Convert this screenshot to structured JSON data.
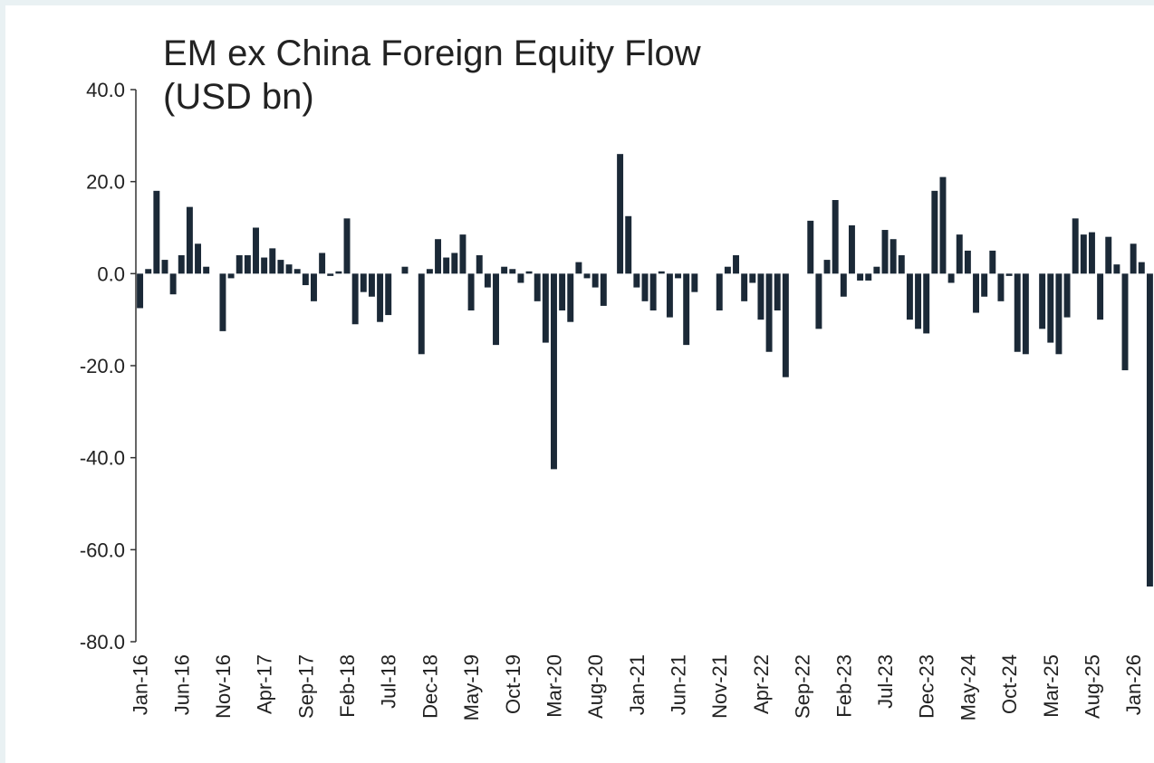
{
  "chart_data": {
    "type": "bar",
    "title": "EM ex China Foreign Equity Flow",
    "subtitle": "(USD bn)",
    "color": "#1b2937",
    "ylim": [
      -80,
      40
    ],
    "yticks": [
      {
        "value": -80,
        "label": "-80.0"
      },
      {
        "value": -60,
        "label": "-60.0"
      },
      {
        "value": -40,
        "label": "-40.0"
      },
      {
        "value": -20,
        "label": "-20.0"
      },
      {
        "value": 0,
        "label": "0.0"
      },
      {
        "value": 20,
        "label": "20.0"
      },
      {
        "value": 40,
        "label": "40.0"
      }
    ],
    "categories": [
      "Jan-16",
      null,
      null,
      null,
      null,
      "Jun-16",
      null,
      null,
      null,
      null,
      "Nov-16",
      null,
      null,
      null,
      null,
      "Apr-17",
      null,
      null,
      null,
      null,
      "Sep-17",
      null,
      null,
      null,
      null,
      "Feb-18",
      null,
      null,
      null,
      null,
      "Jul-18",
      null,
      null,
      null,
      null,
      "Dec-18",
      null,
      null,
      null,
      null,
      "May-19",
      null,
      null,
      null,
      null,
      "Oct-19",
      null,
      null,
      null,
      null,
      "Mar-20",
      null,
      null,
      null,
      null,
      "Aug-20",
      null,
      null,
      null,
      null,
      "Jan-21",
      null,
      null,
      null,
      null,
      "Jun-21",
      null,
      null,
      null,
      null,
      "Nov-21",
      null,
      null,
      null,
      null,
      "Apr-22",
      null,
      null,
      null,
      null,
      "Sep-22",
      null,
      null,
      null,
      null,
      "Feb-23",
      null,
      null,
      null,
      null,
      "Jul-23",
      null,
      null,
      null,
      null,
      "Dec-23",
      null,
      null,
      null,
      null,
      "May-24",
      null,
      null,
      null,
      null,
      "Oct-24",
      null,
      null,
      null,
      null,
      "Mar-25",
      null,
      null,
      null,
      null,
      "Aug-25",
      null,
      null,
      null,
      null,
      "Jan-26",
      null,
      null
    ],
    "values": [
      -7.5,
      1,
      18,
      3,
      -4.5,
      4,
      14.5,
      6.5,
      1.5,
      0,
      -12.5,
      -1,
      4,
      4,
      10,
      3.5,
      5.5,
      3,
      2,
      1,
      -2.5,
      -6,
      4.5,
      -0.5,
      0.5,
      12,
      -11,
      -4,
      -5,
      -10.5,
      -9,
      0,
      1.5,
      0,
      -17.5,
      1,
      7.5,
      3.5,
      4.5,
      8.5,
      -8,
      4,
      -3,
      -15.5,
      1.5,
      1,
      -2,
      0.5,
      -6,
      -15,
      -42.5,
      -8,
      -10.5,
      2.5,
      -1,
      -3,
      -7,
      0,
      26,
      12.5,
      -3,
      -6,
      -8,
      0.5,
      -9.5,
      -1,
      -15.5,
      -4,
      0,
      0,
      -8,
      1.5,
      4,
      -6,
      -2,
      -10,
      -17,
      -8,
      -22.5,
      0,
      0,
      11.5,
      -12,
      3,
      16,
      -5,
      10.5,
      -1.5,
      -1.5,
      1.5,
      9.5,
      7.5,
      4,
      -10,
      -12,
      -13,
      18,
      21,
      -2,
      8.5,
      5,
      -8.5,
      -5,
      5,
      -6,
      -0.5,
      -17,
      -17.5,
      0,
      -12,
      -15,
      -17.5,
      -9.5,
      12,
      8.5,
      9,
      -10,
      8,
      2,
      -21,
      6.5,
      2.5,
      -68
    ]
  }
}
